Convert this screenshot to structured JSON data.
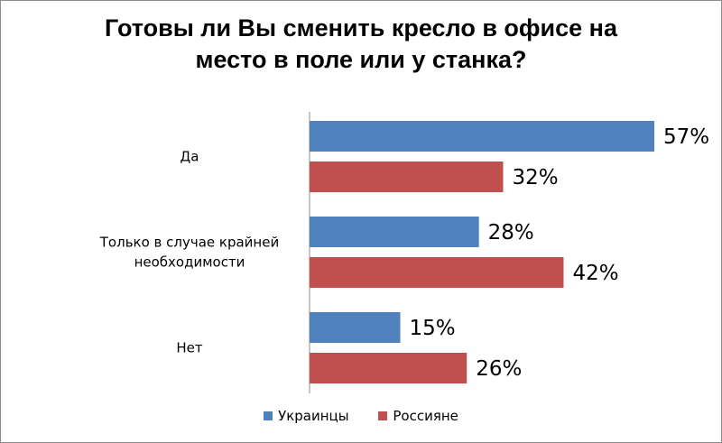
{
  "chart_data": {
    "type": "bar",
    "orientation": "horizontal",
    "title_lines": [
      "Готовы ли Вы сменить кресло в офисе на",
      "место в поле или у станка?"
    ],
    "categories": [
      {
        "lines": [
          "Да"
        ]
      },
      {
        "lines": [
          "Только в случае крайней",
          "необходимости"
        ]
      },
      {
        "lines": [
          "Нет"
        ]
      }
    ],
    "series": [
      {
        "name": "Украинцы",
        "color": "#4F81BD",
        "values": [
          57,
          28,
          15
        ],
        "labels": [
          "57%",
          "28%",
          "15%"
        ]
      },
      {
        "name": "Россияне",
        "color": "#C0504D",
        "values": [
          32,
          42,
          26
        ],
        "labels": [
          "32%",
          "42%",
          "26%"
        ]
      }
    ],
    "unit": "%",
    "xlim": [
      0,
      60
    ],
    "grid": false,
    "legend": "bottom"
  }
}
